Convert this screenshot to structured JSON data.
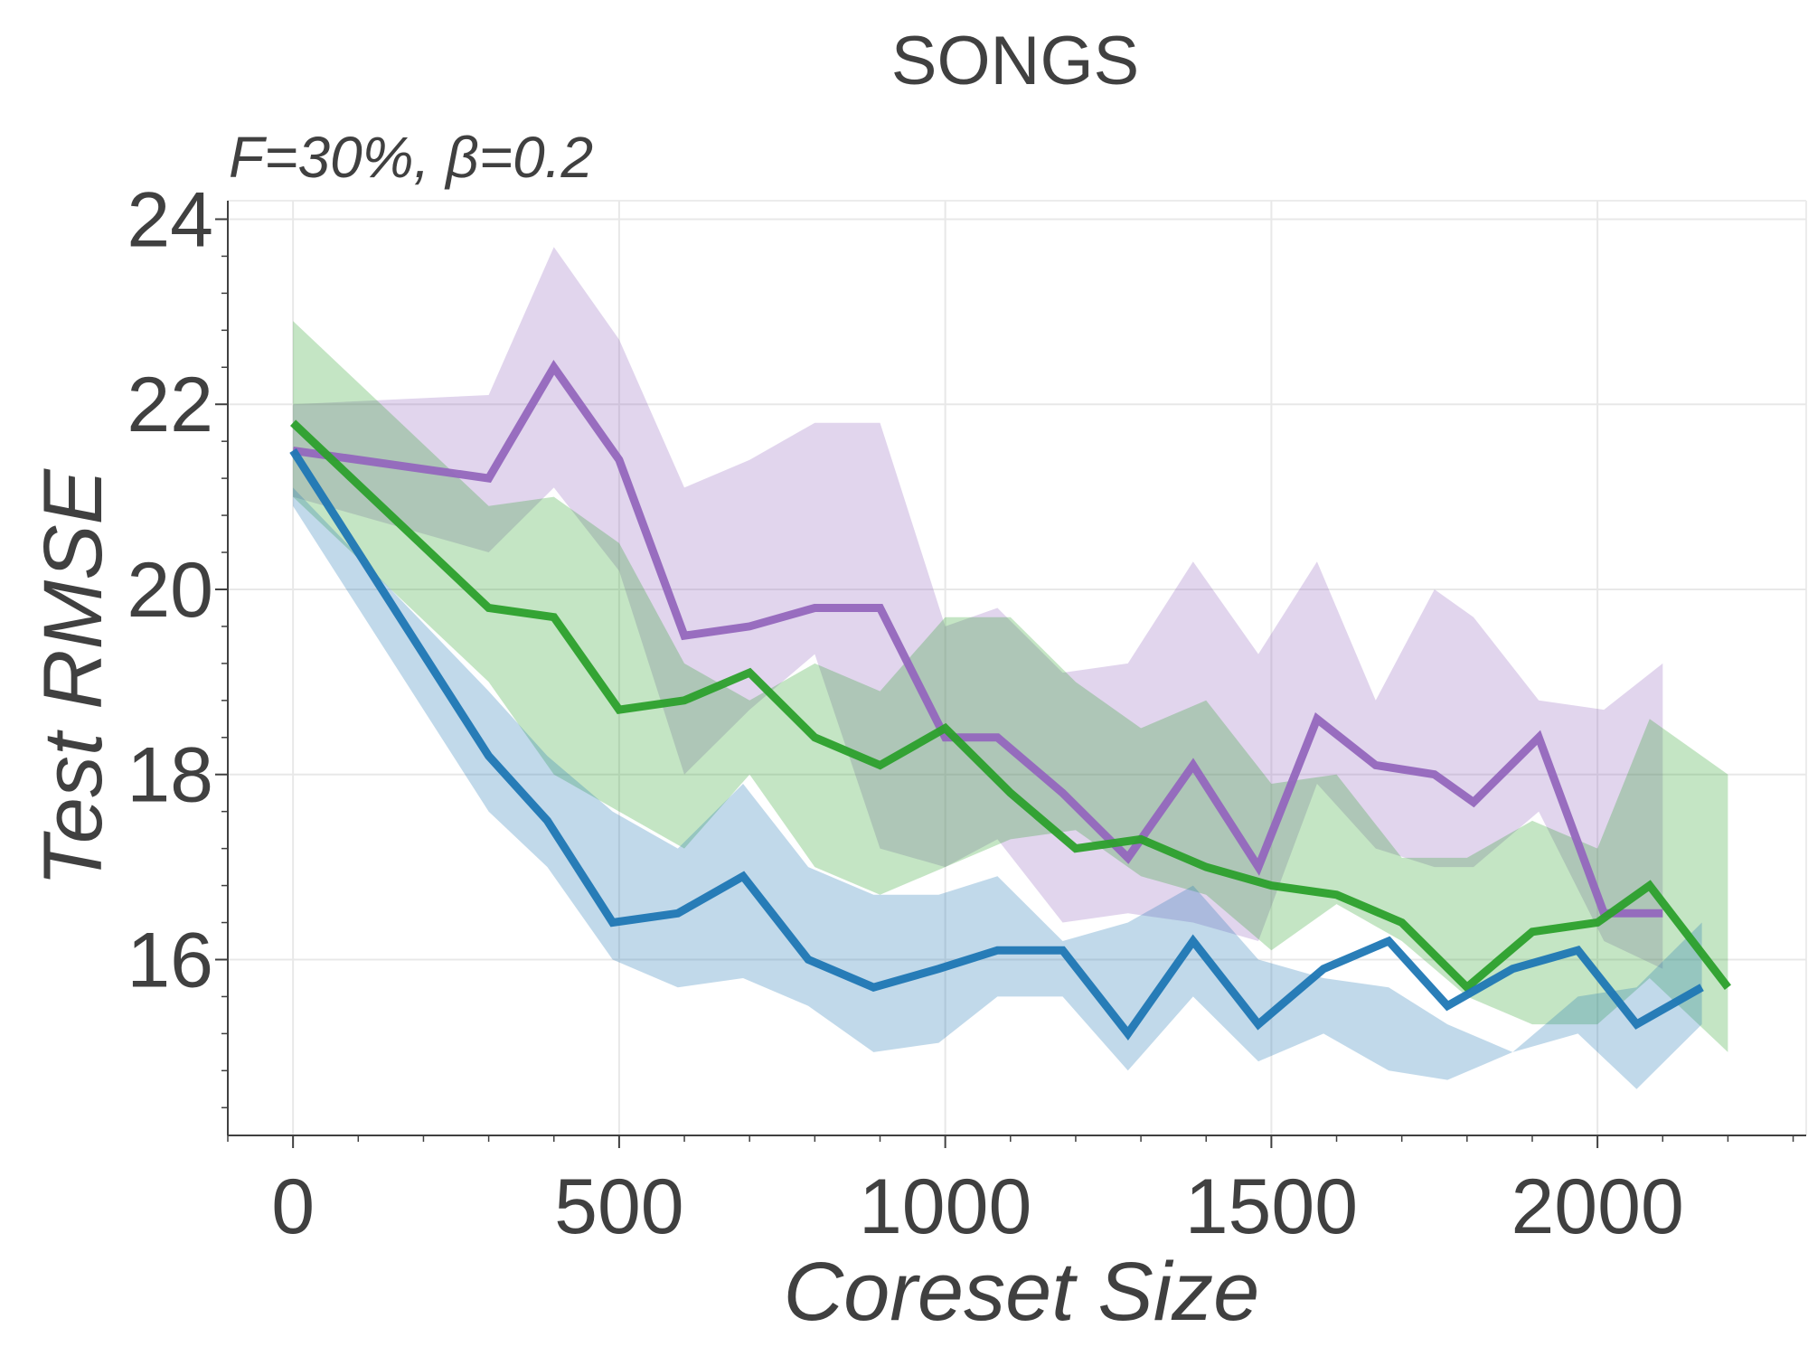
{
  "chart_data": {
    "type": "line",
    "title": "SONGS",
    "annotation": "F=30%,  β=0.2",
    "xlabel": "Coreset Size",
    "ylabel": "Test RMSE",
    "xlim": [
      -100,
      2320
    ],
    "ylim": [
      14.1,
      24.2
    ],
    "xticks": [
      0,
      500,
      1000,
      1500,
      2000
    ],
    "yticks": [
      16,
      18,
      20,
      22,
      24
    ],
    "grid": true,
    "legend": "none",
    "series": [
      {
        "color": "#9467bd",
        "x": [
          0,
          300,
          400,
          500,
          600,
          700,
          800,
          900,
          1000,
          1080,
          1180,
          1280,
          1380,
          1480,
          1570,
          1660,
          1750,
          1810,
          1910,
          2010,
          2100
        ],
        "y": [
          21.5,
          21.2,
          22.4,
          21.4,
          19.5,
          19.6,
          19.8,
          19.8,
          18.4,
          18.4,
          17.8,
          17.1,
          18.1,
          17.0,
          18.6,
          18.1,
          18.0,
          17.7,
          18.4,
          16.5,
          16.5
        ],
        "lower": [
          21.0,
          20.4,
          21.1,
          20.2,
          18.0,
          18.7,
          19.3,
          17.2,
          17.0,
          17.3,
          16.4,
          16.5,
          16.4,
          16.2,
          17.9,
          17.2,
          17.0,
          17.0,
          17.6,
          16.2,
          15.9
        ],
        "upper": [
          22.0,
          22.1,
          23.7,
          22.7,
          21.1,
          21.4,
          21.8,
          21.8,
          19.6,
          19.8,
          19.1,
          19.2,
          20.3,
          19.3,
          20.3,
          18.8,
          20.0,
          19.7,
          18.8,
          18.7,
          19.2
        ]
      },
      {
        "color": "#2ca02c",
        "x": [
          0,
          300,
          400,
          500,
          600,
          700,
          800,
          900,
          1000,
          1100,
          1200,
          1300,
          1400,
          1500,
          1600,
          1700,
          1800,
          1900,
          2000,
          2080,
          2200
        ],
        "y": [
          21.8,
          19.8,
          19.7,
          18.7,
          18.8,
          19.1,
          18.4,
          18.1,
          18.5,
          17.8,
          17.2,
          17.3,
          17.0,
          16.8,
          16.7,
          16.4,
          15.7,
          16.3,
          16.4,
          16.8,
          15.7
        ],
        "lower": [
          21.0,
          19.0,
          18.0,
          17.6,
          17.2,
          18.0,
          17.0,
          16.7,
          17.0,
          17.3,
          17.4,
          16.9,
          16.7,
          16.1,
          16.6,
          16.2,
          15.6,
          15.3,
          15.3,
          15.8,
          15.0
        ],
        "upper": [
          22.9,
          20.9,
          21.0,
          20.5,
          19.2,
          18.8,
          19.2,
          18.9,
          19.7,
          19.7,
          19.0,
          18.5,
          18.8,
          17.9,
          18.0,
          17.1,
          17.1,
          17.5,
          17.2,
          18.6,
          18.0
        ]
      },
      {
        "color": "#1f77b4",
        "x": [
          0,
          300,
          390,
          490,
          590,
          690,
          790,
          890,
          990,
          1080,
          1180,
          1280,
          1380,
          1480,
          1580,
          1680,
          1770,
          1870,
          1970,
          2060,
          2160
        ],
        "y": [
          21.5,
          18.2,
          17.5,
          16.4,
          16.5,
          16.9,
          16.0,
          15.7,
          15.9,
          16.1,
          16.1,
          15.2,
          16.2,
          15.3,
          15.9,
          16.2,
          15.5,
          15.9,
          16.1,
          15.3,
          15.7
        ],
        "lower": [
          20.9,
          17.6,
          17.0,
          16.0,
          15.7,
          15.8,
          15.5,
          15.0,
          15.1,
          15.6,
          15.6,
          14.8,
          15.6,
          14.9,
          15.2,
          14.8,
          14.7,
          15.0,
          15.2,
          14.6,
          15.3
        ],
        "upper": [
          21.1,
          18.9,
          18.2,
          17.6,
          17.2,
          17.9,
          17.0,
          16.7,
          16.7,
          16.9,
          16.2,
          16.4,
          16.8,
          16.0,
          15.8,
          15.7,
          15.3,
          15.0,
          15.6,
          15.7,
          16.4
        ]
      }
    ]
  }
}
